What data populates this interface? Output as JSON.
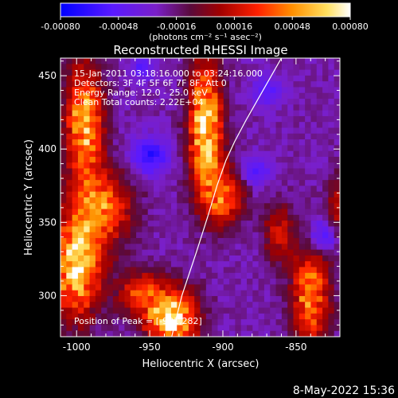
{
  "footer": {
    "timestamp": "8-May-2022 15:36"
  },
  "chart_data": {
    "type": "heatmap",
    "title": "Reconstructed RHESSI Image",
    "xlabel": "Heliocentric X (arcsec)",
    "ylabel": "Heliocentric Y (arcsec)",
    "xlim": [
      -1011,
      -820
    ],
    "ylim": [
      272,
      462
    ],
    "x_ticks": [
      -1000,
      -950,
      -900,
      -850
    ],
    "x_tick_labels": [
      "-1000",
      "-950",
      "-900",
      "-850"
    ],
    "y_ticks": [
      300,
      350,
      400,
      450
    ],
    "y_tick_labels": [
      "300",
      "350",
      "400",
      "450"
    ],
    "colorbar": {
      "colormap": "hot-with-blue-negative",
      "range": [
        -0.0008,
        0.0008
      ],
      "ticks": [
        -0.0008,
        -0.00048,
        -0.00016,
        0.00016,
        0.00048,
        0.0008
      ],
      "tick_labels": [
        "-0.00080",
        "-0.00048",
        "-0.00016",
        "0.00016",
        "0.00048",
        "0.00080"
      ],
      "label": "(photons cm⁻² s⁻¹ asec⁻²)",
      "colors": [
        "#0000ff",
        "#5a1aff",
        "#7a1fc8",
        "#5a0a3a",
        "#a00000",
        "#ff2000",
        "#ff9000",
        "#ffe060",
        "#ffffff"
      ]
    },
    "annotations": [
      "15-Jan-2011 03:18:16.000 to 03:24:16.000",
      "Detectors: 3F 4F 5F 6F 7F 8F, Att 0",
      "Energy Range: 12.0 - 25.0 keV",
      "Clean    Total counts: 2.22E+04"
    ],
    "peak_label": "Position of Peak = [-931,282]",
    "limb_curve": {
      "x": [
        -935,
        -928,
        -918,
        -910,
        -904,
        -898,
        -892,
        -884,
        -876,
        -868,
        -860
      ],
      "y": [
        272,
        300,
        330,
        355,
        375,
        392,
        405,
        420,
        434,
        448,
        462
      ]
    },
    "emission_sources": [
      {
        "x": -995,
        "y": 418,
        "sx": 9,
        "sy": 28,
        "amp": 0.0008
      },
      {
        "x": -982,
        "y": 360,
        "sx": 14,
        "sy": 18,
        "amp": 0.0006
      },
      {
        "x": -1000,
        "y": 320,
        "sx": 12,
        "sy": 24,
        "amp": 0.0009
      },
      {
        "x": -958,
        "y": 302,
        "sx": 10,
        "sy": 10,
        "amp": 0.0005
      },
      {
        "x": -935,
        "y": 285,
        "sx": 12,
        "sy": 14,
        "amp": 0.001
      },
      {
        "x": -912,
        "y": 415,
        "sx": 8,
        "sy": 30,
        "amp": 0.0009
      },
      {
        "x": -900,
        "y": 368,
        "sx": 10,
        "sy": 14,
        "amp": 0.0006
      },
      {
        "x": -862,
        "y": 342,
        "sx": 7,
        "sy": 14,
        "amp": 0.0004
      },
      {
        "x": -840,
        "y": 300,
        "sx": 9,
        "sy": 26,
        "amp": 0.0007
      },
      {
        "x": -820,
        "y": 355,
        "sx": 6,
        "sy": 18,
        "amp": 0.0004
      }
    ],
    "negative_sources": [
      {
        "x": -950,
        "y": 395,
        "sx": 9,
        "sy": 9,
        "amp": 0.00045
      },
      {
        "x": -878,
        "y": 385,
        "sx": 7,
        "sy": 7,
        "amp": 0.00035
      },
      {
        "x": -830,
        "y": 340,
        "sx": 9,
        "sy": 9,
        "amp": 0.00045
      },
      {
        "x": -870,
        "y": 440,
        "sx": 7,
        "sy": 7,
        "amp": 0.0003
      },
      {
        "x": -955,
        "y": 455,
        "sx": 6,
        "sy": 6,
        "amp": 0.0003
      }
    ]
  }
}
